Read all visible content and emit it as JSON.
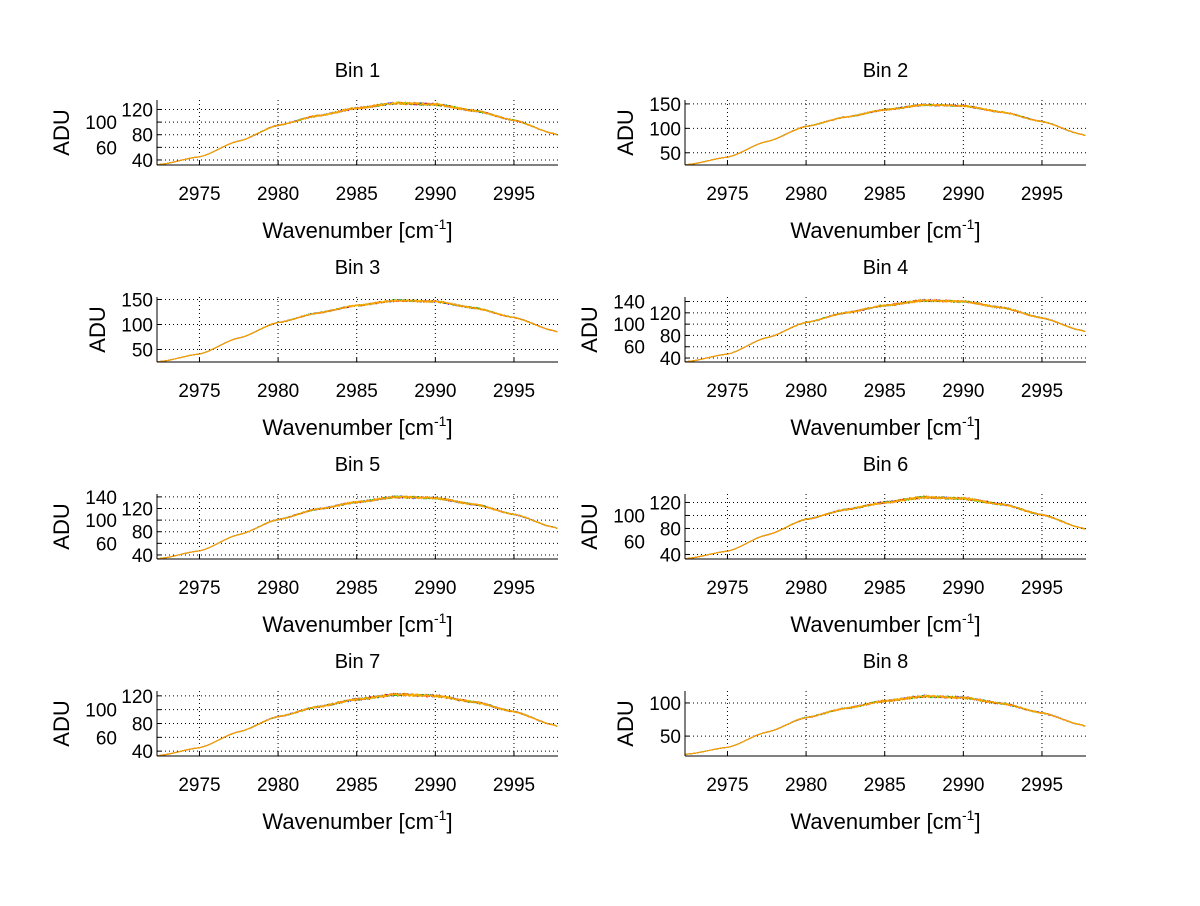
{
  "chart_data": [
    {
      "type": "line",
      "title": "Bin 1",
      "xlabel": "Wavenumber [cm",
      "xlabel_sup": "-1",
      "xlabel_end": "]",
      "ylabel": "ADU",
      "xlim": [
        2972.3,
        2997.8
      ],
      "ylim": [
        32,
        135
      ],
      "xticks": [
        2975,
        2980,
        2985,
        2990,
        2995
      ],
      "yticks": [
        40,
        60,
        80,
        100,
        120
      ],
      "grid": true,
      "x": [
        2972.5,
        2975,
        2977.5,
        2980,
        2982.5,
        2985,
        2987.5,
        2990,
        2992.5,
        2995,
        2997.5
      ],
      "y": [
        33,
        45,
        70,
        95,
        110,
        122,
        130,
        128,
        118,
        103,
        82
      ]
    },
    {
      "type": "line",
      "title": "Bin 2",
      "xlabel": "Wavenumber [cm",
      "xlabel_sup": "-1",
      "xlabel_end": "]",
      "ylabel": "ADU",
      "xlim": [
        2972.3,
        2997.8
      ],
      "ylim": [
        25,
        158
      ],
      "xticks": [
        2975,
        2980,
        2985,
        2990,
        2995
      ],
      "yticks": [
        50,
        100,
        150
      ],
      "grid": true,
      "x": [
        2972.5,
        2975,
        2977.5,
        2980,
        2982.5,
        2985,
        2987.5,
        2990,
        2992.5,
        2995,
        2997.5
      ],
      "y": [
        26,
        41,
        73,
        104,
        123,
        138,
        148,
        146,
        133,
        114,
        88
      ]
    },
    {
      "type": "line",
      "title": "Bin 3",
      "xlabel": "Wavenumber [cm",
      "xlabel_sup": "-1",
      "xlabel_end": "]",
      "ylabel": "ADU",
      "xlim": [
        2972.3,
        2997.8
      ],
      "ylim": [
        25,
        155
      ],
      "xticks": [
        2975,
        2980,
        2985,
        2990,
        2995
      ],
      "yticks": [
        50,
        100,
        150
      ],
      "grid": true,
      "x": [
        2972.5,
        2975,
        2977.5,
        2980,
        2982.5,
        2985,
        2987.5,
        2990,
        2992.5,
        2995,
        2997.5
      ],
      "y": [
        26,
        41,
        73,
        104,
        123,
        138,
        148,
        146,
        133,
        114,
        88
      ]
    },
    {
      "type": "line",
      "title": "Bin 4",
      "xlabel": "Wavenumber [cm",
      "xlabel_sup": "-1",
      "xlabel_end": "]",
      "ylabel": "ADU",
      "xlim": [
        2972.3,
        2997.8
      ],
      "ylim": [
        33,
        148
      ],
      "xticks": [
        2975,
        2980,
        2985,
        2990,
        2995
      ],
      "yticks": [
        40,
        60,
        80,
        100,
        120,
        140
      ],
      "grid": true,
      "x": [
        2972.5,
        2975,
        2977.5,
        2980,
        2982.5,
        2985,
        2987.5,
        2990,
        2992.5,
        2995,
        2997.5
      ],
      "y": [
        34,
        47,
        76,
        103,
        120,
        133,
        142,
        140,
        129,
        111,
        89
      ]
    },
    {
      "type": "line",
      "title": "Bin 5",
      "xlabel": "Wavenumber [cm",
      "xlabel_sup": "-1",
      "xlabel_end": "]",
      "ylabel": "ADU",
      "xlim": [
        2972.3,
        2997.8
      ],
      "ylim": [
        33,
        145
      ],
      "xticks": [
        2975,
        2980,
        2985,
        2990,
        2995
      ],
      "yticks": [
        40,
        60,
        80,
        100,
        120,
        140
      ],
      "grid": true,
      "x": [
        2972.5,
        2975,
        2977.5,
        2980,
        2982.5,
        2985,
        2987.5,
        2990,
        2992.5,
        2995,
        2997.5
      ],
      "y": [
        34,
        47,
        75,
        101,
        119,
        131,
        140,
        138,
        127,
        110,
        88
      ]
    },
    {
      "type": "line",
      "title": "Bin 6",
      "xlabel": "Wavenumber [cm",
      "xlabel_sup": "-1",
      "xlabel_end": "]",
      "ylabel": "ADU",
      "xlim": [
        2972.3,
        2997.8
      ],
      "ylim": [
        33,
        133
      ],
      "xticks": [
        2975,
        2980,
        2985,
        2990,
        2995
      ],
      "yticks": [
        40,
        60,
        80,
        100,
        120
      ],
      "grid": true,
      "x": [
        2972.5,
        2975,
        2977.5,
        2980,
        2982.5,
        2985,
        2987.5,
        2990,
        2992.5,
        2995,
        2997.5
      ],
      "y": [
        34,
        45,
        70,
        94,
        109,
        120,
        128,
        126,
        117,
        101,
        81
      ]
    },
    {
      "type": "line",
      "title": "Bin 7",
      "xlabel": "Wavenumber [cm",
      "xlabel_sup": "-1",
      "xlabel_end": "]",
      "ylabel": "ADU",
      "xlim": [
        2972.3,
        2997.8
      ],
      "ylim": [
        33,
        127
      ],
      "xticks": [
        2975,
        2980,
        2985,
        2990,
        2995
      ],
      "yticks": [
        40,
        60,
        80,
        100,
        120
      ],
      "grid": true,
      "x": [
        2972.5,
        2975,
        2977.5,
        2980,
        2982.5,
        2985,
        2987.5,
        2990,
        2992.5,
        2995,
        2997.5
      ],
      "y": [
        34,
        45,
        68,
        90,
        104,
        115,
        122,
        120,
        111,
        97,
        78
      ]
    },
    {
      "type": "line",
      "title": "Bin 8",
      "xlabel": "Wavenumber [cm",
      "xlabel_sup": "-1",
      "xlabel_end": "]",
      "ylabel": "ADU",
      "xlim": [
        2972.3,
        2997.8
      ],
      "ylim": [
        20,
        118
      ],
      "xticks": [
        2975,
        2980,
        2985,
        2990,
        2995
      ],
      "yticks": [
        50,
        100
      ],
      "grid": true,
      "x": [
        2972.5,
        2975,
        2977.5,
        2980,
        2982.5,
        2985,
        2987.5,
        2990,
        2992.5,
        2995,
        2997.5
      ],
      "y": [
        23,
        33,
        56,
        78,
        92,
        103,
        110,
        108,
        99,
        85,
        67
      ]
    }
  ],
  "series_colors": [
    "#0000ff",
    "#ff0000",
    "#00aa00",
    "#ffcc00",
    "#ff9900"
  ]
}
